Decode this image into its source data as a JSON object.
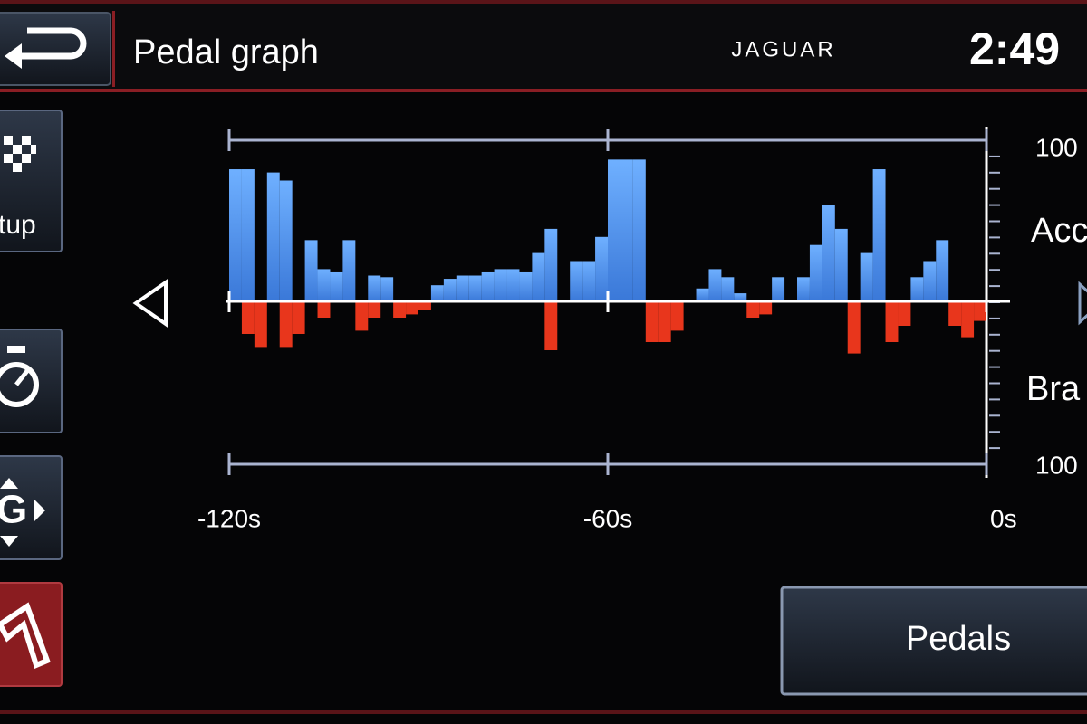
{
  "header": {
    "title": "Pedal graph",
    "brand": "JAGUAR",
    "clock": "2:49"
  },
  "sidebar": {
    "setup": "tup"
  },
  "button": "Pedals",
  "chart_data": {
    "type": "bar",
    "x": [
      -120,
      -118,
      -116,
      -114,
      -112,
      -110,
      -108,
      -106,
      -104,
      -102,
      -100,
      -98,
      -96,
      -94,
      -92,
      -90,
      -88,
      -86,
      -84,
      -82,
      -80,
      -78,
      -76,
      -74,
      -72,
      -70,
      -68,
      -66,
      -64,
      -62,
      -60,
      -58,
      -56,
      -54,
      -52,
      -50,
      -48,
      -46,
      -44,
      -42,
      -40,
      -38,
      -36,
      -34,
      -32,
      -30,
      -28,
      -26,
      -24,
      -22,
      -20,
      -18,
      -16,
      -14,
      -12,
      -10,
      -8,
      -6,
      -4,
      -2
    ],
    "xlim": [
      -120,
      0
    ],
    "xticks": [
      {
        "value": -120,
        "label": "-120s"
      },
      {
        "value": -60,
        "label": "-60s"
      },
      {
        "value": 0,
        "label": "0s"
      }
    ],
    "ylim": [
      0,
      100
    ],
    "yticks": [
      100
    ],
    "y2lim": [
      0,
      100
    ],
    "y2ticks": [
      100
    ],
    "series": [
      {
        "name": "Acc",
        "color": "#4a8fe6",
        "values": [
          82,
          82,
          0,
          80,
          75,
          0,
          38,
          20,
          18,
          38,
          0,
          16,
          15,
          0,
          0,
          0,
          10,
          14,
          16,
          16,
          18,
          20,
          20,
          18,
          30,
          45,
          0,
          25,
          25,
          40,
          88,
          88,
          88,
          0,
          0,
          0,
          0,
          8,
          20,
          15,
          5,
          0,
          0,
          15,
          0,
          15,
          35,
          60,
          45,
          0,
          30,
          82,
          0,
          0,
          15,
          25,
          38,
          0,
          0,
          0
        ]
      },
      {
        "name": "Bra",
        "color": "#e8361c",
        "axis": "y2",
        "values": [
          0,
          20,
          28,
          0,
          28,
          20,
          0,
          10,
          0,
          0,
          18,
          10,
          0,
          10,
          8,
          5,
          0,
          0,
          0,
          0,
          0,
          0,
          0,
          0,
          0,
          30,
          0,
          0,
          0,
          0,
          0,
          0,
          0,
          25,
          25,
          18,
          0,
          0,
          0,
          0,
          0,
          10,
          8,
          0,
          0,
          0,
          0,
          0,
          0,
          32,
          0,
          0,
          25,
          15,
          0,
          0,
          0,
          15,
          22,
          12
        ]
      }
    ]
  }
}
